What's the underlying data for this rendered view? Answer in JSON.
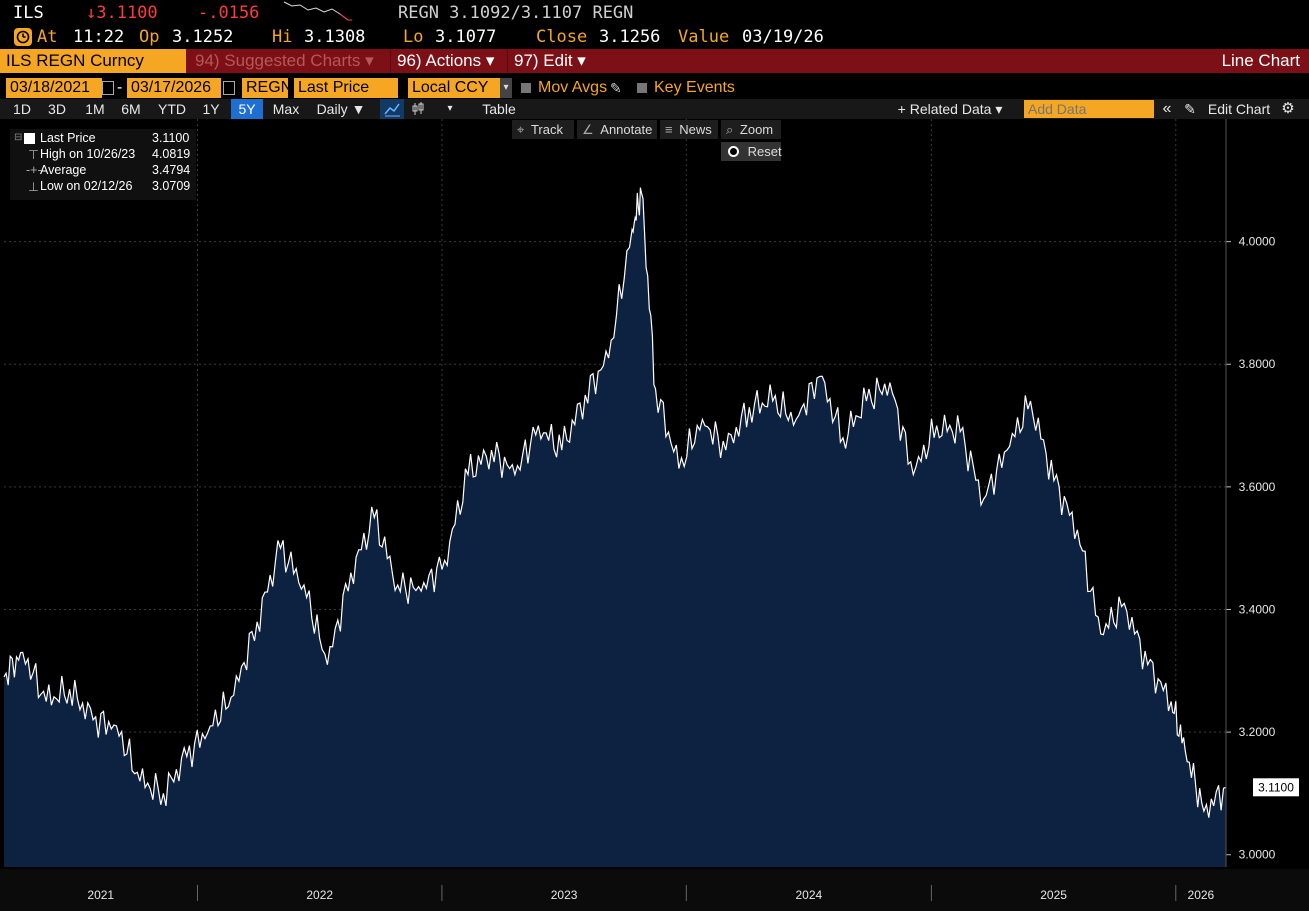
{
  "header": {
    "ticker": "ILS",
    "last": "↓3.1100",
    "change": "-.0156",
    "bid_ask": "REGN 3.1092/3.1107 REGN",
    "at_label": "At",
    "time": "11:22",
    "op_label": "Op",
    "op": "3.1252",
    "hi_label": "Hi",
    "hi": "3.1308",
    "lo_label": "Lo",
    "lo": "3.1077",
    "close_label": "Close",
    "close": "3.1256",
    "value_label": "Value",
    "value_date": "03/19/26"
  },
  "menu": {
    "security": "ILS REGN Curncy",
    "suggested": "94) Suggested Charts ▾",
    "actions": "96) Actions ▾",
    "edit": "97) Edit ▾",
    "chart_type": "Line Chart"
  },
  "params": {
    "start_date": "03/18/2021",
    "dash": "-",
    "end_date": "03/17/2026",
    "source": "REGN",
    "field": "Last Price",
    "currency": "Local CCY",
    "mov_avgs": "Mov Avgs",
    "key_events": "Key Events"
  },
  "toolbar": {
    "periods": [
      "1D",
      "3D",
      "1M",
      "6M",
      "YTD",
      "1Y",
      "5Y",
      "Max"
    ],
    "selected_period": "5Y",
    "frequency": "Daily ▼",
    "table": "Table",
    "related": "+ Related Data ▾",
    "add_data_placeholder": "Add Data",
    "collapse": "«",
    "edit_chart": "Edit Chart"
  },
  "chart_tools": {
    "track": "Track",
    "annotate": "Annotate",
    "news": "News",
    "zoom": "Zoom",
    "reset": "Reset"
  },
  "legend": {
    "last_label": "Last Price",
    "last_value": "3.1100",
    "high_label": "High on 10/26/23",
    "high_value": "4.0819",
    "avg_label": "Average",
    "avg_value": "3.4794",
    "low_label": "Low on 02/12/26",
    "low_value": "3.0709"
  },
  "colors": {
    "accent": "#f5a623",
    "menu_bar": "#7d0f16",
    "area_fill": "#0c2240",
    "line": "#ffffff",
    "down": "#ff3b3b"
  },
  "chart_data": {
    "type": "area",
    "series": [
      {
        "x": [
          "2021-03-18",
          "2021-04-15",
          "2021-05-20",
          "2021-06-24",
          "2021-07-29",
          "2021-09-02",
          "2021-10-07",
          "2021-11-11",
          "2021-12-16",
          "2022-01-20",
          "2022-02-24",
          "2022-03-31",
          "2022-05-05",
          "2022-06-09",
          "2022-07-14",
          "2022-08-18",
          "2022-09-22",
          "2022-10-27",
          "2022-12-01",
          "2023-01-05",
          "2023-02-09",
          "2023-03-16",
          "2023-04-20",
          "2023-05-25",
          "2023-06-29",
          "2023-08-03",
          "2023-09-07",
          "2023-10-12",
          "2023-10-26",
          "2023-11-16",
          "2023-12-21",
          "2024-01-25",
          "2024-02-29",
          "2024-04-04",
          "2024-05-09",
          "2024-06-13",
          "2024-07-18",
          "2024-08-22",
          "2024-09-26",
          "2024-10-31",
          "2024-12-05",
          "2025-01-09",
          "2025-02-13",
          "2025-03-20",
          "2025-04-24",
          "2025-05-29",
          "2025-07-03",
          "2025-08-07",
          "2025-09-11",
          "2025-10-16",
          "2025-11-20",
          "2025-12-25",
          "2026-01-15",
          "2026-02-12",
          "2026-03-17"
        ],
        "y": [
          3.29,
          3.33,
          3.25,
          3.27,
          3.22,
          3.21,
          3.12,
          3.1,
          3.16,
          3.21,
          3.26,
          3.38,
          3.5,
          3.44,
          3.31,
          3.46,
          3.55,
          3.44,
          3.43,
          3.48,
          3.62,
          3.66,
          3.62,
          3.7,
          3.66,
          3.75,
          3.81,
          4.02,
          4.08,
          3.76,
          3.63,
          3.71,
          3.66,
          3.73,
          3.74,
          3.71,
          3.78,
          3.68,
          3.74,
          3.77,
          3.62,
          3.7,
          3.69,
          3.58,
          3.66,
          3.74,
          3.61,
          3.53,
          3.36,
          3.41,
          3.31,
          3.25,
          3.17,
          3.071,
          3.11
        ]
      }
    ],
    "x_ticks": [
      "2021",
      "2022",
      "2023",
      "2024",
      "2025",
      "2026"
    ],
    "y_ticks": [
      3.0,
      3.2,
      3.4,
      3.6,
      3.8,
      4.0
    ],
    "y_tick_labels": [
      "3.0000",
      "3.2000",
      "3.4000",
      "3.6000",
      "3.8000",
      "4.0000"
    ],
    "ylim": [
      2.98,
      4.2
    ],
    "last_label": "3.1100",
    "grid": true,
    "legend_position": "top-left"
  }
}
